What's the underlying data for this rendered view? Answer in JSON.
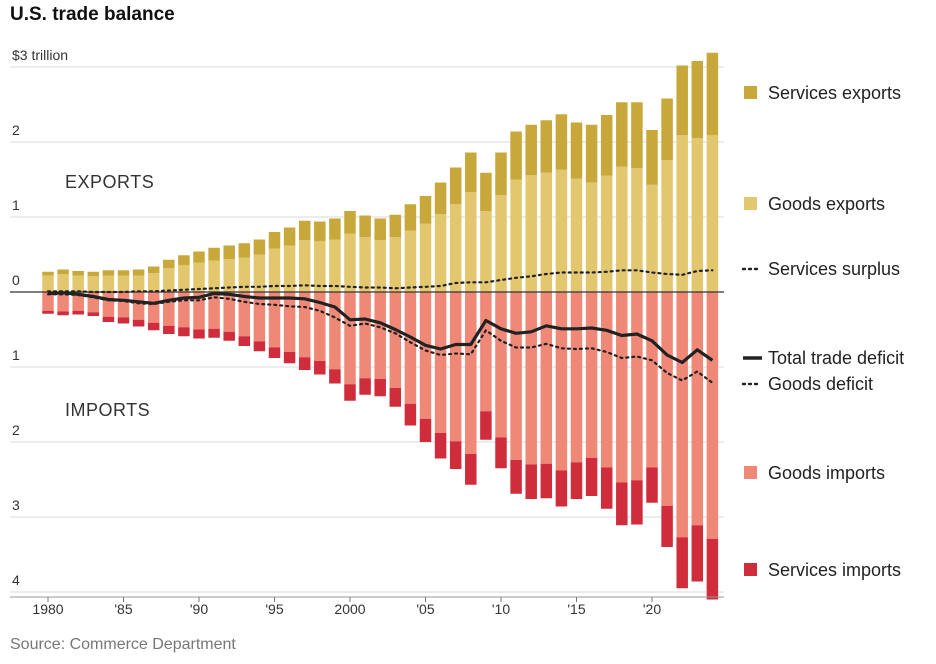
{
  "title": "U.S. trade balance",
  "source": "Source: Commerce Department",
  "chart_data": {
    "type": "bar",
    "title": "U.S. trade balance",
    "units": "$ trillion",
    "y_ticks": [
      {
        "value": 3,
        "label": "$3 trillion"
      },
      {
        "value": 2,
        "label": "2"
      },
      {
        "value": 1,
        "label": "1"
      },
      {
        "value": 0,
        "label": "0"
      },
      {
        "value": -1,
        "label": "1"
      },
      {
        "value": -2,
        "label": "2"
      },
      {
        "value": -3,
        "label": "3"
      },
      {
        "value": -4,
        "label": "4"
      }
    ],
    "x_ticks": [
      {
        "year": 1980,
        "label": "1980"
      },
      {
        "year": 1985,
        "label": "'85"
      },
      {
        "year": 1990,
        "label": "'90"
      },
      {
        "year": 1995,
        "label": "'95"
      },
      {
        "year": 2000,
        "label": "2000"
      },
      {
        "year": 2005,
        "label": "'05"
      },
      {
        "year": 2010,
        "label": "'10"
      },
      {
        "year": 2015,
        "label": "'15"
      },
      {
        "year": 2020,
        "label": "'20"
      }
    ],
    "ylim": [
      -4.1,
      3.2
    ],
    "region_labels": {
      "exports": "EXPORTS",
      "imports": "IMPORTS"
    },
    "years": [
      1980,
      1981,
      1982,
      1983,
      1984,
      1985,
      1986,
      1987,
      1988,
      1989,
      1990,
      1991,
      1992,
      1993,
      1994,
      1995,
      1996,
      1997,
      1998,
      1999,
      2000,
      2001,
      2002,
      2003,
      2004,
      2005,
      2006,
      2007,
      2008,
      2009,
      2010,
      2011,
      2012,
      2013,
      2014,
      2015,
      2016,
      2017,
      2018,
      2019,
      2020,
      2021,
      2022,
      2023,
      2024
    ],
    "series": [
      {
        "name": "Services exports",
        "color": "#c8a83a",
        "values": [
          0.05,
          0.06,
          0.06,
          0.06,
          0.07,
          0.07,
          0.08,
          0.09,
          0.11,
          0.13,
          0.15,
          0.17,
          0.18,
          0.19,
          0.2,
          0.22,
          0.24,
          0.26,
          0.26,
          0.28,
          0.3,
          0.29,
          0.29,
          0.3,
          0.35,
          0.37,
          0.42,
          0.49,
          0.53,
          0.51,
          0.57,
          0.64,
          0.67,
          0.7,
          0.74,
          0.75,
          0.77,
          0.81,
          0.86,
          0.88,
          0.73,
          0.82,
          0.93,
          1.03,
          1.1
        ]
      },
      {
        "name": "Goods exports",
        "color": "#e3c76f",
        "values": [
          0.22,
          0.24,
          0.22,
          0.21,
          0.22,
          0.22,
          0.22,
          0.25,
          0.32,
          0.36,
          0.39,
          0.42,
          0.44,
          0.46,
          0.5,
          0.58,
          0.62,
          0.69,
          0.68,
          0.7,
          0.78,
          0.73,
          0.69,
          0.73,
          0.82,
          0.91,
          1.04,
          1.17,
          1.33,
          1.08,
          1.29,
          1.5,
          1.56,
          1.59,
          1.63,
          1.51,
          1.46,
          1.55,
          1.67,
          1.65,
          1.43,
          1.76,
          2.09,
          2.05,
          2.09
        ]
      },
      {
        "name": "Services surplus",
        "color": "#222222",
        "values": [
          0.01,
          0.01,
          0.01,
          0.0,
          0.0,
          0.0,
          0.01,
          0.01,
          0.02,
          0.03,
          0.04,
          0.05,
          0.06,
          0.07,
          0.07,
          0.08,
          0.08,
          0.09,
          0.08,
          0.08,
          0.07,
          0.06,
          0.06,
          0.05,
          0.06,
          0.07,
          0.08,
          0.12,
          0.13,
          0.13,
          0.16,
          0.19,
          0.21,
          0.24,
          0.26,
          0.26,
          0.26,
          0.27,
          0.29,
          0.29,
          0.26,
          0.24,
          0.23,
          0.28,
          0.29
        ]
      },
      {
        "name": "Total trade deficit",
        "color": "#222222",
        "values": [
          -0.02,
          -0.01,
          -0.03,
          -0.06,
          -0.1,
          -0.11,
          -0.13,
          -0.15,
          -0.11,
          -0.08,
          -0.07,
          -0.02,
          -0.03,
          -0.06,
          -0.08,
          -0.08,
          -0.08,
          -0.09,
          -0.14,
          -0.2,
          -0.37,
          -0.36,
          -0.41,
          -0.5,
          -0.6,
          -0.71,
          -0.76,
          -0.7,
          -0.7,
          -0.38,
          -0.49,
          -0.55,
          -0.53,
          -0.45,
          -0.49,
          -0.49,
          -0.48,
          -0.51,
          -0.58,
          -0.56,
          -0.65,
          -0.84,
          -0.94,
          -0.77,
          -0.91
        ]
      },
      {
        "name": "Goods deficit",
        "color": "#222222",
        "values": [
          -0.03,
          -0.03,
          -0.04,
          -0.07,
          -0.11,
          -0.12,
          -0.15,
          -0.16,
          -0.13,
          -0.11,
          -0.11,
          -0.07,
          -0.09,
          -0.13,
          -0.16,
          -0.17,
          -0.19,
          -0.2,
          -0.25,
          -0.34,
          -0.45,
          -0.42,
          -0.47,
          -0.55,
          -0.67,
          -0.78,
          -0.84,
          -0.82,
          -0.83,
          -0.51,
          -0.65,
          -0.74,
          -0.74,
          -0.69,
          -0.75,
          -0.76,
          -0.75,
          -0.8,
          -0.88,
          -0.86,
          -0.91,
          -1.08,
          -1.18,
          -1.06,
          -1.21
        ]
      },
      {
        "name": "Goods imports",
        "color": "#f08878",
        "values": [
          -0.25,
          -0.26,
          -0.25,
          -0.27,
          -0.33,
          -0.34,
          -0.37,
          -0.41,
          -0.45,
          -0.47,
          -0.5,
          -0.49,
          -0.53,
          -0.59,
          -0.66,
          -0.74,
          -0.8,
          -0.87,
          -0.92,
          -1.03,
          -1.23,
          -1.15,
          -1.16,
          -1.28,
          -1.49,
          -1.69,
          -1.88,
          -1.99,
          -2.16,
          -1.59,
          -1.94,
          -2.24,
          -2.3,
          -2.29,
          -2.38,
          -2.27,
          -2.21,
          -2.34,
          -2.54,
          -2.51,
          -2.34,
          -2.85,
          -3.27,
          -3.11,
          -3.29
        ]
      },
      {
        "name": "Services imports",
        "color": "#cf2d3b",
        "values": [
          -0.04,
          -0.05,
          -0.05,
          -0.05,
          -0.07,
          -0.08,
          -0.09,
          -0.1,
          -0.11,
          -0.12,
          -0.12,
          -0.12,
          -0.12,
          -0.13,
          -0.13,
          -0.14,
          -0.15,
          -0.17,
          -0.18,
          -0.19,
          -0.22,
          -0.22,
          -0.23,
          -0.25,
          -0.29,
          -0.31,
          -0.34,
          -0.37,
          -0.41,
          -0.38,
          -0.41,
          -0.45,
          -0.46,
          -0.46,
          -0.48,
          -0.49,
          -0.51,
          -0.55,
          -0.57,
          -0.59,
          -0.47,
          -0.55,
          -0.68,
          -0.75,
          -0.81
        ]
      }
    ],
    "legend": [
      {
        "key": "services_exports",
        "label": "Services exports",
        "style": "swatch",
        "color": "#c8a83a"
      },
      {
        "key": "goods_exports",
        "label": "Goods exports",
        "style": "swatch",
        "color": "#e3c76f"
      },
      {
        "key": "services_surplus",
        "label": "Services surplus",
        "style": "dotted"
      },
      {
        "key": "total_deficit",
        "label": "Total trade deficit",
        "style": "solid"
      },
      {
        "key": "goods_deficit",
        "label": "Goods deficit",
        "style": "dotted"
      },
      {
        "key": "goods_imports",
        "label": "Goods imports",
        "style": "swatch",
        "color": "#f08878"
      },
      {
        "key": "services_imports",
        "label": "Services imports",
        "style": "swatch",
        "color": "#cf2d3b"
      }
    ],
    "grid": true,
    "legend_position": "right"
  }
}
